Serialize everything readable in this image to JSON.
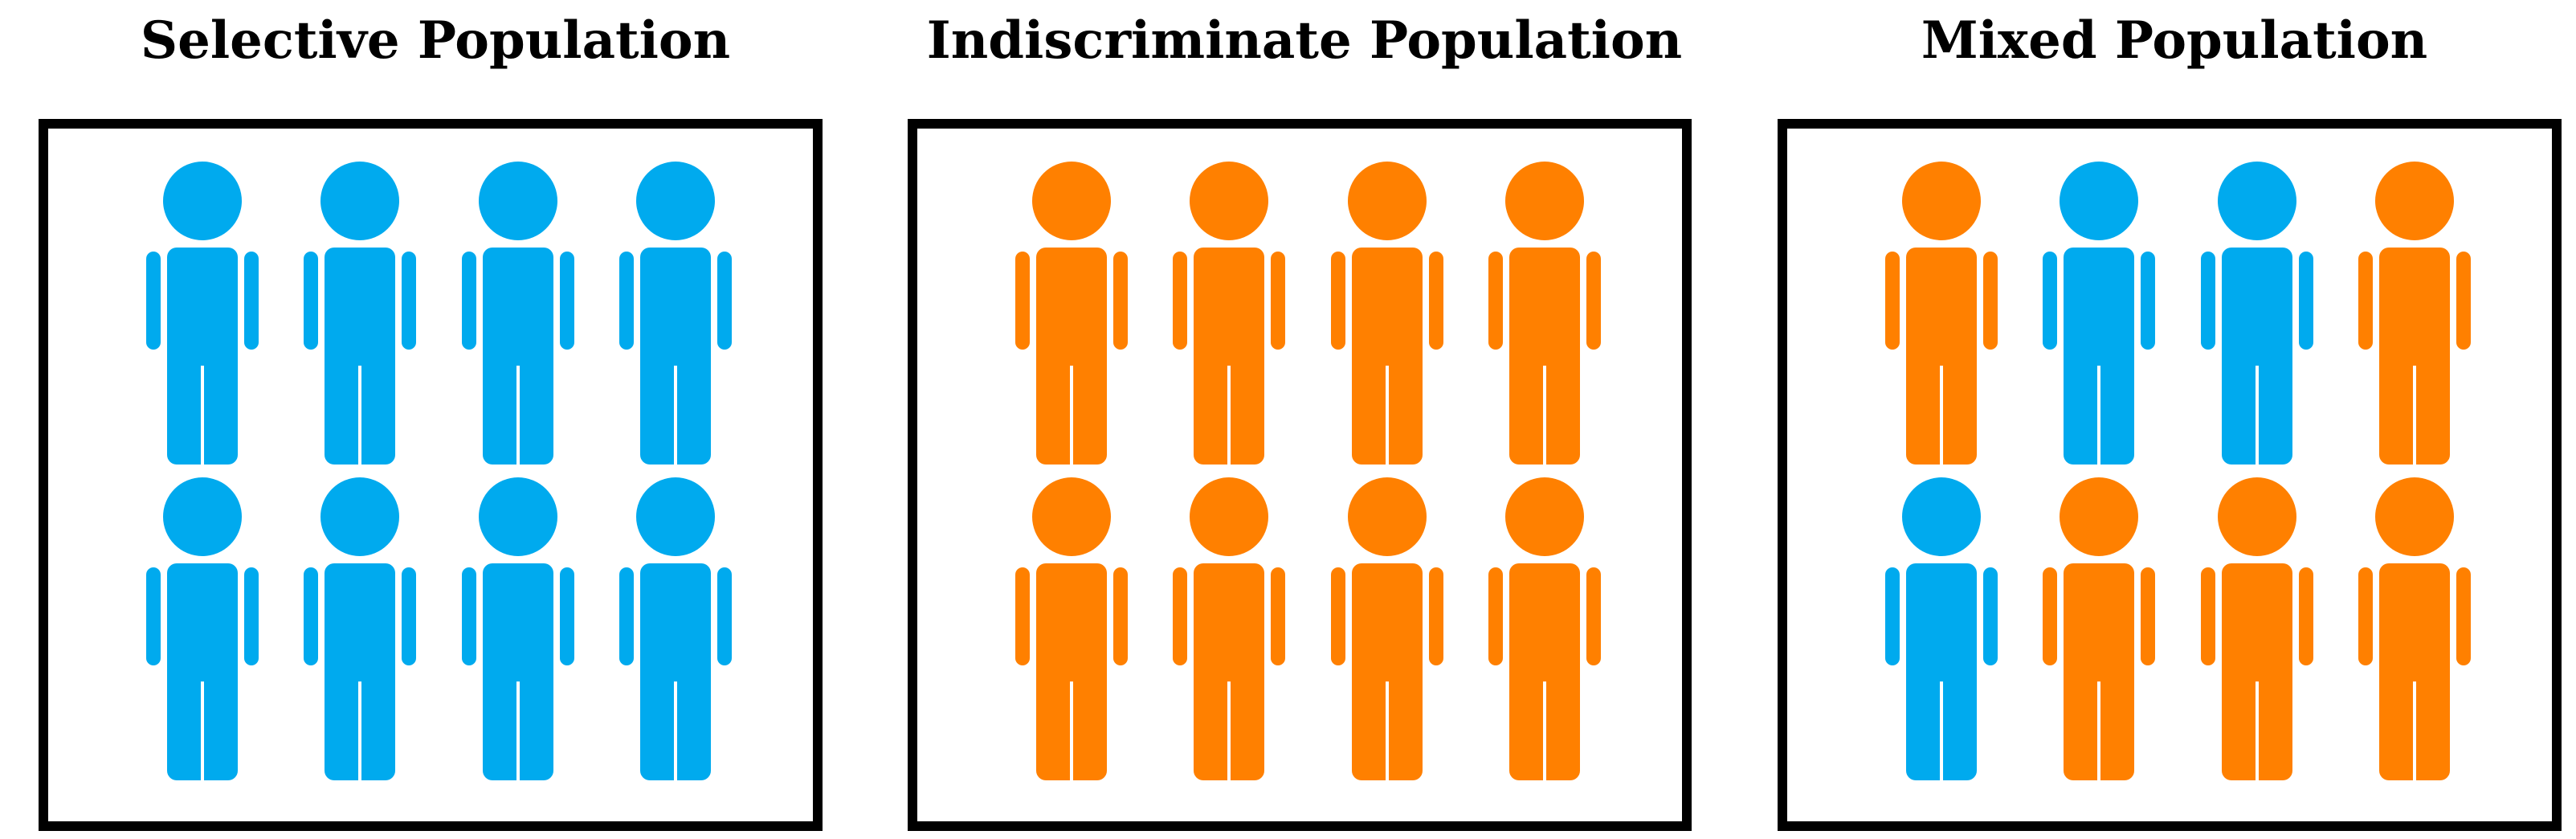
{
  "colors": {
    "selective": "#00aaee",
    "indiscriminate": "#ff8000",
    "border": "#000000",
    "background": "#ffffff"
  },
  "icon": "person-icon",
  "panels": [
    {
      "title": "Selective Population",
      "people": [
        "selective",
        "selective",
        "selective",
        "selective",
        "selective",
        "selective",
        "selective",
        "selective"
      ]
    },
    {
      "title": "Indiscriminate Population",
      "people": [
        "indiscriminate",
        "indiscriminate",
        "indiscriminate",
        "indiscriminate",
        "indiscriminate",
        "indiscriminate",
        "indiscriminate",
        "indiscriminate"
      ]
    },
    {
      "title": "Mixed Population",
      "people": [
        "indiscriminate",
        "selective",
        "selective",
        "indiscriminate",
        "selective",
        "indiscriminate",
        "indiscriminate",
        "indiscriminate"
      ]
    }
  ]
}
